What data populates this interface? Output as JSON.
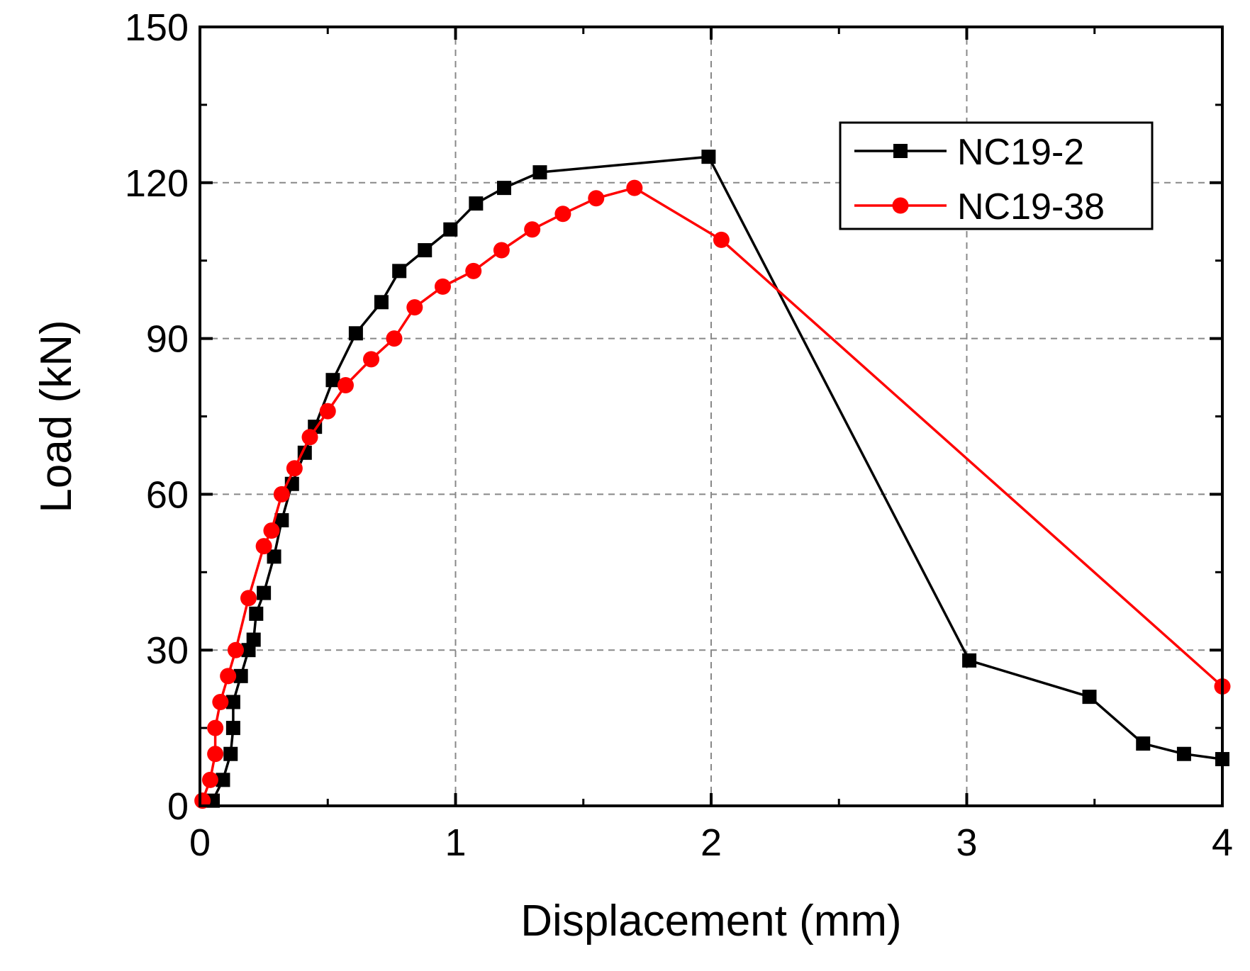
{
  "chart_data": {
    "type": "line",
    "title": "",
    "xlabel": "Displacement (mm)",
    "ylabel": "Load (kN)",
    "xlim": [
      0,
      4
    ],
    "ylim": [
      0,
      150
    ],
    "xticks": [
      0,
      1,
      2,
      3,
      4
    ],
    "yticks": [
      0,
      30,
      60,
      90,
      120,
      150
    ],
    "x_tick_labels": [
      "0",
      "1",
      "2",
      "3",
      "4"
    ],
    "y_tick_labels": [
      "0",
      "30",
      "60",
      "90",
      "120",
      "150"
    ],
    "grid": true,
    "legend_position": "top-right",
    "series": [
      {
        "name": "NC19-2",
        "color": "#000000",
        "marker": "square",
        "x": [
          0.05,
          0.09,
          0.12,
          0.13,
          0.13,
          0.16,
          0.19,
          0.21,
          0.22,
          0.25,
          0.29,
          0.32,
          0.36,
          0.41,
          0.45,
          0.52,
          0.61,
          0.71,
          0.78,
          0.88,
          0.98,
          1.08,
          1.19,
          1.33,
          1.99,
          3.01,
          3.48,
          3.69,
          3.85,
          4.0
        ],
        "y": [
          1,
          5,
          10,
          15,
          20,
          25,
          30,
          32,
          37,
          41,
          48,
          55,
          62,
          68,
          73,
          82,
          91,
          97,
          103,
          107,
          111,
          116,
          119,
          122,
          125,
          28,
          21,
          12,
          10,
          9
        ]
      },
      {
        "name": "NC19-38",
        "color": "#ff0000",
        "marker": "circle",
        "x": [
          0.01,
          0.04,
          0.06,
          0.06,
          0.08,
          0.11,
          0.14,
          0.19,
          0.25,
          0.28,
          0.32,
          0.37,
          0.43,
          0.5,
          0.57,
          0.67,
          0.76,
          0.84,
          0.95,
          1.07,
          1.18,
          1.3,
          1.42,
          1.55,
          1.7,
          2.04,
          4.0
        ],
        "y": [
          1,
          5,
          10,
          15,
          20,
          25,
          30,
          40,
          50,
          53,
          60,
          65,
          71,
          76,
          81,
          86,
          90,
          96,
          100,
          103,
          107,
          111,
          114,
          117,
          119,
          109,
          23
        ]
      }
    ]
  }
}
